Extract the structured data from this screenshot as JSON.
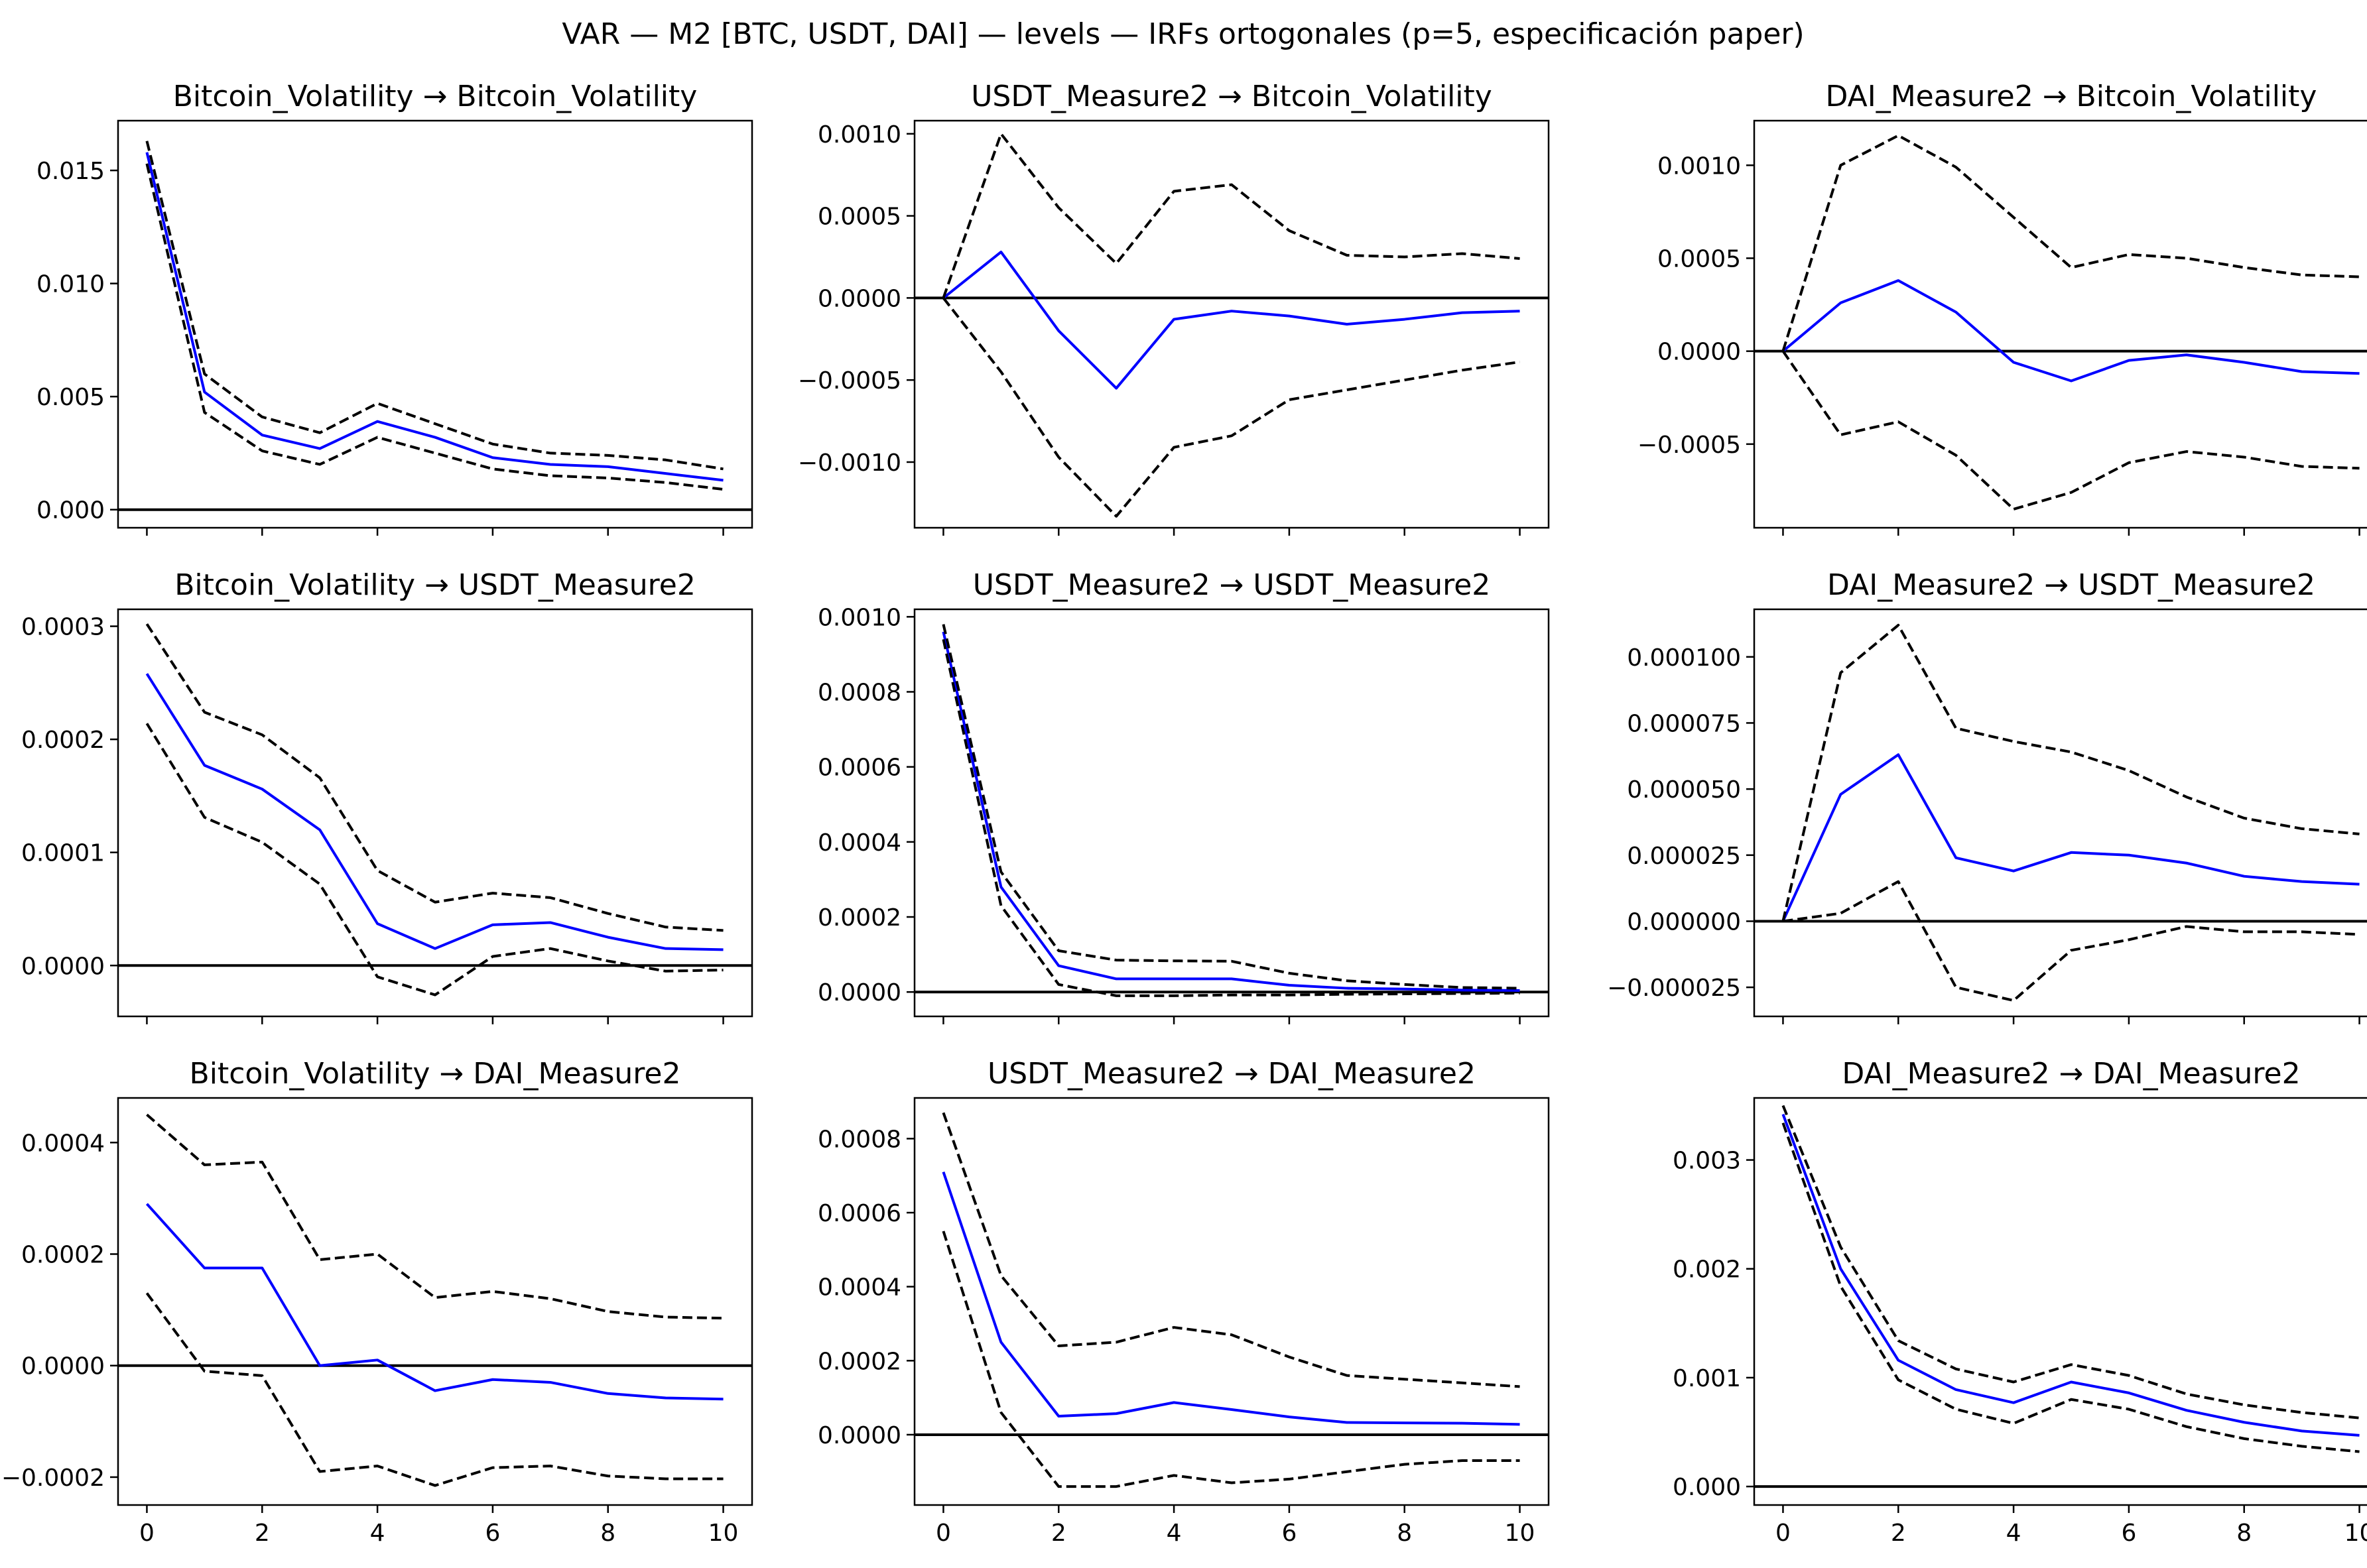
{
  "suptitle": "VAR — M2 [BTC, USDT, DAI] — levels — IRFs ortogonales (p=5, especificación paper)",
  "colors": {
    "irf": "#0000ff",
    "band": "#000000",
    "zero": "#000000",
    "frame": "#000000"
  },
  "chart_data": [
    {
      "type": "line",
      "title": "Bitcoin_Volatility → Bitcoin_Volatility",
      "x": [
        0,
        1,
        2,
        3,
        4,
        5,
        6,
        7,
        8,
        9,
        10
      ],
      "ylim": [
        -0.0008,
        0.0172
      ],
      "yticks": [
        0.0,
        0.005,
        0.01,
        0.015
      ],
      "ytick_labels": [
        "0.000",
        "0.005",
        "0.010",
        "0.015"
      ],
      "xticks": [
        0,
        2,
        4,
        6,
        8,
        10
      ],
      "xtick_labels": [],
      "series": [
        {
          "role": "irf",
          "values": [
            0.0158,
            0.0052,
            0.0033,
            0.0027,
            0.0039,
            0.0032,
            0.0023,
            0.002,
            0.0019,
            0.0016,
            0.0013
          ]
        },
        {
          "role": "upper",
          "values": [
            0.0163,
            0.006,
            0.0041,
            0.0034,
            0.0047,
            0.0038,
            0.0029,
            0.0025,
            0.0024,
            0.0022,
            0.0018
          ]
        },
        {
          "role": "lower",
          "values": [
            0.0153,
            0.0043,
            0.0026,
            0.002,
            0.0032,
            0.0025,
            0.0018,
            0.0015,
            0.0014,
            0.0012,
            0.0009
          ]
        }
      ]
    },
    {
      "type": "line",
      "title": "USDT_Measure2 → Bitcoin_Volatility",
      "x": [
        0,
        1,
        2,
        3,
        4,
        5,
        6,
        7,
        8,
        9,
        10
      ],
      "ylim": [
        -0.0014,
        0.00108
      ],
      "yticks": [
        -0.001,
        -0.0005,
        0.0,
        0.0005,
        0.001
      ],
      "ytick_labels": [
        "−0.0010",
        "−0.0005",
        "0.0000",
        "0.0005",
        "0.0010"
      ],
      "xticks": [
        0,
        2,
        4,
        6,
        8,
        10
      ],
      "xtick_labels": [],
      "series": [
        {
          "role": "irf",
          "values": [
            0.0,
            0.00028,
            -0.0002,
            -0.00055,
            -0.00013,
            -8e-05,
            -0.00011,
            -0.00016,
            -0.00013,
            -9e-05,
            -8e-05
          ]
        },
        {
          "role": "upper",
          "values": [
            0.0,
            0.001,
            0.00055,
            0.00021,
            0.00065,
            0.00069,
            0.00041,
            0.00026,
            0.00025,
            0.00027,
            0.00024
          ]
        },
        {
          "role": "lower",
          "values": [
            0.0,
            -0.00045,
            -0.00097,
            -0.00133,
            -0.00091,
            -0.00084,
            -0.00062,
            -0.00056,
            -0.0005,
            -0.00044,
            -0.00039
          ]
        }
      ]
    },
    {
      "type": "line",
      "title": "DAI_Measure2 → Bitcoin_Volatility",
      "x": [
        0,
        1,
        2,
        3,
        4,
        5,
        6,
        7,
        8,
        9,
        10
      ],
      "ylim": [
        -0.00095,
        0.00124
      ],
      "yticks": [
        -0.0005,
        0.0,
        0.0005,
        0.001
      ],
      "ytick_labels": [
        "−0.0005",
        "0.0000",
        "0.0005",
        "0.0010"
      ],
      "xticks": [
        0,
        2,
        4,
        6,
        8,
        10
      ],
      "xtick_labels": [],
      "series": [
        {
          "role": "irf",
          "values": [
            0.0,
            0.00026,
            0.00038,
            0.00021,
            -6e-05,
            -0.00016,
            -5e-05,
            -2e-05,
            -6e-05,
            -0.00011,
            -0.00012
          ]
        },
        {
          "role": "upper",
          "values": [
            0.0,
            0.001,
            0.00116,
            0.00099,
            0.00072,
            0.00045,
            0.00052,
            0.0005,
            0.00045,
            0.00041,
            0.0004
          ]
        },
        {
          "role": "lower",
          "values": [
            0.0,
            -0.00045,
            -0.00038,
            -0.00056,
            -0.00085,
            -0.00076,
            -0.0006,
            -0.00054,
            -0.00057,
            -0.00062,
            -0.00063
          ]
        }
      ]
    },
    {
      "type": "line",
      "title": "Bitcoin_Volatility → USDT_Measure2",
      "x": [
        0,
        1,
        2,
        3,
        4,
        5,
        6,
        7,
        8,
        9,
        10
      ],
      "ylim": [
        -4.5e-05,
        0.000315
      ],
      "yticks": [
        0.0,
        0.0001,
        0.0002,
        0.0003
      ],
      "ytick_labels": [
        "0.0000",
        "0.0001",
        "0.0002",
        "0.0003"
      ],
      "xticks": [
        0,
        2,
        4,
        6,
        8,
        10
      ],
      "xtick_labels": [],
      "series": [
        {
          "role": "irf",
          "values": [
            0.000258,
            0.000177,
            0.000156,
            0.00012,
            3.7e-05,
            1.5e-05,
            3.6e-05,
            3.8e-05,
            2.5e-05,
            1.5e-05,
            1.4e-05
          ]
        },
        {
          "role": "upper",
          "values": [
            0.000302,
            0.000224,
            0.000204,
            0.000166,
            8.4e-05,
            5.6e-05,
            6.4e-05,
            6e-05,
            4.6e-05,
            3.4e-05,
            3.1e-05
          ]
        },
        {
          "role": "lower",
          "values": [
            0.000214,
            0.000131,
            0.000109,
            7.2e-05,
            -1e-05,
            -2.6e-05,
            8e-06,
            1.5e-05,
            4e-06,
            -5e-06,
            -4e-06
          ]
        }
      ]
    },
    {
      "type": "line",
      "title": "USDT_Measure2 → USDT_Measure2",
      "x": [
        0,
        1,
        2,
        3,
        4,
        5,
        6,
        7,
        8,
        9,
        10
      ],
      "ylim": [
        -6.5e-05,
        0.00102
      ],
      "yticks": [
        0.0,
        0.0002,
        0.0004,
        0.0006,
        0.0008,
        0.001
      ],
      "ytick_labels": [
        "0.0000",
        "0.0002",
        "0.0004",
        "0.0006",
        "0.0008",
        "0.0010"
      ],
      "xticks": [
        0,
        2,
        4,
        6,
        8,
        10
      ],
      "xtick_labels": [],
      "series": [
        {
          "role": "irf",
          "values": [
            0.00096,
            0.00028,
            7e-05,
            3.5e-05,
            3.5e-05,
            3.5e-05,
            1.8e-05,
            1e-05,
            8e-06,
            5e-06,
            4e-06
          ]
        },
        {
          "role": "upper",
          "values": [
            0.00098,
            0.00032,
            0.00011,
            8.5e-05,
            8.3e-05,
            8.2e-05,
            5e-05,
            3e-05,
            2e-05,
            1.2e-05,
            1e-05
          ]
        },
        {
          "role": "lower",
          "values": [
            0.00094,
            0.00023,
            2e-05,
            -1e-05,
            -1e-05,
            -8e-06,
            -8e-06,
            -6e-06,
            -5e-06,
            -4e-06,
            -3e-06
          ]
        }
      ]
    },
    {
      "type": "line",
      "title": "DAI_Measure2 → USDT_Measure2",
      "x": [
        0,
        1,
        2,
        3,
        4,
        5,
        6,
        7,
        8,
        9,
        10
      ],
      "ylim": [
        -3.6e-05,
        0.000118
      ],
      "yticks": [
        -2.5e-05,
        0.0,
        2.5e-05,
        5e-05,
        7.5e-05,
        0.0001
      ],
      "ytick_labels": [
        "−0.000025",
        "0.000000",
        "0.000025",
        "0.000050",
        "0.000075",
        "0.000100"
      ],
      "xticks": [
        0,
        2,
        4,
        6,
        8,
        10
      ],
      "xtick_labels": [],
      "series": [
        {
          "role": "irf",
          "values": [
            0.0,
            4.8e-05,
            6.3e-05,
            2.4e-05,
            1.9e-05,
            2.6e-05,
            2.5e-05,
            2.2e-05,
            1.7e-05,
            1.5e-05,
            1.4e-05
          ]
        },
        {
          "role": "upper",
          "values": [
            0.0,
            9.4e-05,
            0.000112,
            7.3e-05,
            6.8e-05,
            6.4e-05,
            5.7e-05,
            4.7e-05,
            3.9e-05,
            3.5e-05,
            3.3e-05
          ]
        },
        {
          "role": "lower",
          "values": [
            0.0,
            3e-06,
            1.5e-05,
            -2.5e-05,
            -3e-05,
            -1.1e-05,
            -7e-06,
            -2e-06,
            -4e-06,
            -4e-06,
            -5e-06
          ]
        }
      ]
    },
    {
      "type": "line",
      "title": "Bitcoin_Volatility → DAI_Measure2",
      "x": [
        0,
        1,
        2,
        3,
        4,
        5,
        6,
        7,
        8,
        9,
        10
      ],
      "ylim": [
        -0.00025,
        0.00048
      ],
      "yticks": [
        -0.0002,
        0.0,
        0.0002,
        0.0004
      ],
      "ytick_labels": [
        "−0.0002",
        "0.0000",
        "0.0002",
        "0.0004"
      ],
      "xticks": [
        0,
        2,
        4,
        6,
        8,
        10
      ],
      "xtick_labels": [
        "0",
        "2",
        "4",
        "6",
        "8",
        "10"
      ],
      "series": [
        {
          "role": "irf",
          "values": [
            0.00029,
            0.000175,
            0.000175,
            0.0,
            1e-05,
            -4.5e-05,
            -2.5e-05,
            -3e-05,
            -5e-05,
            -5.8e-05,
            -6e-05
          ]
        },
        {
          "role": "upper",
          "values": [
            0.00045,
            0.00036,
            0.000365,
            0.00019,
            0.0002,
            0.000122,
            0.000133,
            0.00012,
            9.7e-05,
            8.7e-05,
            8.5e-05
          ]
        },
        {
          "role": "lower",
          "values": [
            0.00013,
            -1e-05,
            -1.8e-05,
            -0.00019,
            -0.00018,
            -0.000215,
            -0.000183,
            -0.00018,
            -0.000198,
            -0.000203,
            -0.000203
          ]
        }
      ]
    },
    {
      "type": "line",
      "title": "USDT_Measure2 → DAI_Measure2",
      "x": [
        0,
        1,
        2,
        3,
        4,
        5,
        6,
        7,
        8,
        9,
        10
      ],
      "ylim": [
        -0.00019,
        0.00091
      ],
      "yticks": [
        0.0,
        0.0002,
        0.0004,
        0.0006,
        0.0008
      ],
      "ytick_labels": [
        "0.0000",
        "0.0002",
        "0.0004",
        "0.0006",
        "0.0008"
      ],
      "xticks": [
        0,
        2,
        4,
        6,
        8,
        10
      ],
      "xtick_labels": [
        "0",
        "2",
        "4",
        "6",
        "8",
        "10"
      ],
      "series": [
        {
          "role": "irf",
          "values": [
            0.00071,
            0.00025,
            5e-05,
            5.7e-05,
            8.7e-05,
            6.8e-05,
            4.8e-05,
            3.3e-05,
            3.2e-05,
            3.1e-05,
            2.8e-05
          ]
        },
        {
          "role": "upper",
          "values": [
            0.00087,
            0.00043,
            0.00024,
            0.00025,
            0.00029,
            0.00027,
            0.00021,
            0.00016,
            0.00015,
            0.00014,
            0.00013
          ]
        },
        {
          "role": "lower",
          "values": [
            0.00055,
            6e-05,
            -0.00014,
            -0.00014,
            -0.00011,
            -0.00013,
            -0.00012,
            -0.0001,
            -8e-05,
            -7e-05,
            -7e-05
          ]
        }
      ]
    },
    {
      "type": "line",
      "title": "DAI_Measure2 → DAI_Measure2",
      "x": [
        0,
        1,
        2,
        3,
        4,
        5,
        6,
        7,
        8,
        9,
        10
      ],
      "ylim": [
        -0.00017,
        0.00357
      ],
      "yticks": [
        0.0,
        0.001,
        0.002,
        0.003
      ],
      "ytick_labels": [
        "0.000",
        "0.001",
        "0.002",
        "0.003"
      ],
      "xticks": [
        0,
        2,
        4,
        6,
        8,
        10
      ],
      "xtick_labels": [
        "0",
        "2",
        "4",
        "6",
        "8",
        "10"
      ],
      "series": [
        {
          "role": "irf",
          "values": [
            0.00342,
            0.002,
            0.00116,
            0.00089,
            0.00077,
            0.00096,
            0.00086,
            0.0007,
            0.00059,
            0.00051,
            0.00047
          ]
        },
        {
          "role": "upper",
          "values": [
            0.0035,
            0.0022,
            0.00134,
            0.00108,
            0.00096,
            0.00112,
            0.00102,
            0.00085,
            0.00075,
            0.00068,
            0.00063
          ]
        },
        {
          "role": "lower",
          "values": [
            0.00334,
            0.00184,
            0.00098,
            0.00071,
            0.00058,
            0.0008,
            0.00071,
            0.00055,
            0.00044,
            0.00037,
            0.00032
          ]
        }
      ]
    }
  ]
}
